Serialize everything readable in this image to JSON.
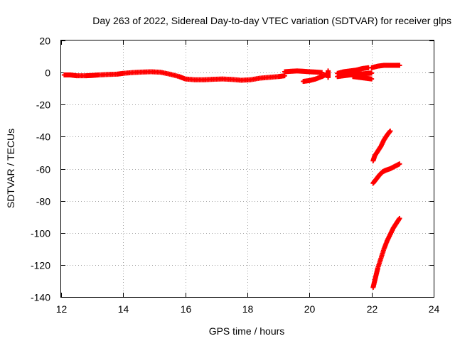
{
  "chart_data": {
    "type": "scatter",
    "title": "Day 263 of 2022, Sidereal Day-to-day VTEC variation (SDTVAR) for receiver glps",
    "xlabel": "GPS time / hours",
    "ylabel": "SDTVAR / TECUs",
    "xlim": [
      12,
      24
    ],
    "ylim": [
      -140,
      20
    ],
    "xticks": [
      12,
      14,
      16,
      18,
      20,
      22,
      24
    ],
    "yticks": [
      20,
      0,
      -20,
      -40,
      -60,
      -80,
      -100,
      -120,
      -140
    ],
    "grid": true,
    "marker": "plus",
    "color": "#ff0000",
    "series": [
      {
        "x": [
          12.1,
          12.3,
          12.5,
          12.8,
          13.0,
          13.2,
          13.5,
          13.8,
          14.0,
          14.3,
          14.6,
          14.9,
          15.2,
          15.5,
          15.8,
          16.0,
          16.3,
          16.6,
          16.9,
          17.2,
          17.5,
          17.8,
          18.1,
          18.4,
          18.7,
          19.0,
          19.2
        ],
        "y": [
          -1.5,
          -1.5,
          -2.0,
          -2.0,
          -1.8,
          -1.5,
          -1.2,
          -1.0,
          -0.5,
          0.0,
          0.3,
          0.5,
          0.2,
          -1.0,
          -2.5,
          -4.0,
          -4.5,
          -4.5,
          -4.2,
          -4.0,
          -4.3,
          -4.8,
          -4.5,
          -3.5,
          -3.0,
          -2.5,
          -2.0
        ]
      },
      {
        "x": [
          19.2,
          19.4,
          19.6,
          19.8,
          20.0,
          20.2,
          20.4
        ],
        "y": [
          0.5,
          0.8,
          1.0,
          0.8,
          0.5,
          0.3,
          0.0
        ]
      },
      {
        "x": [
          19.8,
          20.0,
          20.2,
          20.4,
          20.5
        ],
        "y": [
          -5.5,
          -5.0,
          -4.0,
          -2.5,
          -1.5
        ]
      },
      {
        "x": [
          20.6,
          20.6,
          20.6
        ],
        "y": [
          -3.0,
          -1.0,
          1.0
        ]
      },
      {
        "x": [
          20.9,
          21.1,
          21.3,
          21.5,
          21.7,
          21.9,
          22.0
        ],
        "y": [
          -2.5,
          -2.0,
          -1.5,
          -1.0,
          -0.8,
          -0.5,
          -0.3
        ]
      },
      {
        "x": [
          20.9,
          21.1,
          21.3,
          21.5,
          21.7,
          21.9
        ],
        "y": [
          -0.5,
          0.5,
          1.0,
          1.5,
          2.5,
          3.0
        ]
      },
      {
        "x": [
          21.4,
          21.6,
          21.8,
          22.0
        ],
        "y": [
          -2.5,
          -3.0,
          -3.5,
          -4.0
        ]
      },
      {
        "x": [
          22.0,
          22.2,
          22.4,
          22.6,
          22.8,
          22.9
        ],
        "y": [
          3.0,
          4.0,
          4.5,
          4.5,
          4.5,
          4.5
        ]
      },
      {
        "x": [
          22.05,
          22.1,
          22.2,
          22.3,
          22.4,
          22.5,
          22.6
        ],
        "y": [
          -55.0,
          -52.0,
          -49.0,
          -46.0,
          -42.0,
          -39.0,
          -36.5
        ]
      },
      {
        "x": [
          22.05,
          22.15,
          22.25,
          22.35,
          22.45,
          22.6,
          22.75,
          22.9
        ],
        "y": [
          -69.0,
          -66.5,
          -64.0,
          -62.0,
          -61.0,
          -60.0,
          -58.5,
          -57.0
        ]
      },
      {
        "x": [
          22.05,
          22.1,
          22.15,
          22.2,
          22.3,
          22.4,
          22.5,
          22.6,
          22.7,
          22.8,
          22.9
        ],
        "y": [
          -134.0,
          -130.0,
          -126.0,
          -122.0,
          -116.0,
          -110.0,
          -105.0,
          -101.0,
          -97.0,
          -94.0,
          -91.0
        ]
      }
    ]
  }
}
